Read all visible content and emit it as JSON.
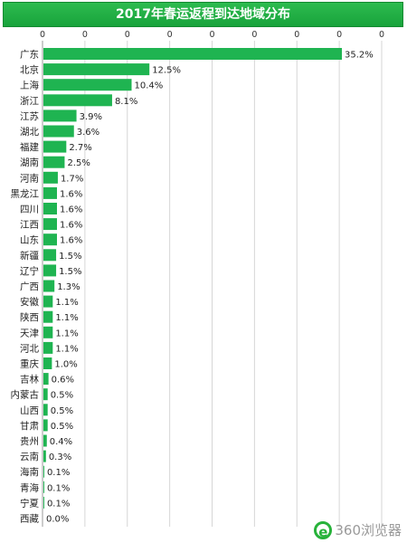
{
  "chart_data": {
    "type": "bar",
    "orientation": "horizontal",
    "title": "2017年春运返程到达地域分布",
    "x_tick_labels": [
      "0",
      "0",
      "0",
      "0",
      "0",
      "0",
      "0",
      "0",
      "0"
    ],
    "xlim": [
      0,
      40
    ],
    "grid": true,
    "bar_color": "#1fb451",
    "categories": [
      "广东",
      "北京",
      "上海",
      "浙江",
      "江苏",
      "湖北",
      "福建",
      "湖南",
      "河南",
      "黑龙江",
      "四川",
      "江西",
      "山东",
      "新疆",
      "辽宁",
      "广西",
      "安徽",
      "陕西",
      "天津",
      "河北",
      "重庆",
      "吉林",
      "内蒙古",
      "山西",
      "甘肃",
      "贵州",
      "云南",
      "海南",
      "青海",
      "宁夏",
      "西藏"
    ],
    "values": [
      35.2,
      12.5,
      10.4,
      8.1,
      3.9,
      3.6,
      2.7,
      2.5,
      1.7,
      1.6,
      1.6,
      1.6,
      1.6,
      1.5,
      1.5,
      1.3,
      1.1,
      1.1,
      1.1,
      1.1,
      1.0,
      0.6,
      0.5,
      0.5,
      0.5,
      0.4,
      0.3,
      0.1,
      0.1,
      0.1,
      0.0
    ],
    "data_labels": [
      "35.2%",
      "12.5%",
      "10.4%",
      "8.1%",
      "3.9%",
      "3.6%",
      "2.7%",
      "2.5%",
      "1.7%",
      "1.6%",
      "1.6%",
      "1.6%",
      "1.6%",
      "1.5%",
      "1.5%",
      "1.3%",
      "1.1%",
      "1.1%",
      "1.1%",
      "1.1%",
      "1.0%",
      "0.6%",
      "0.5%",
      "0.5%",
      "0.5%",
      "0.4%",
      "0.3%",
      "0.1%",
      "0.1%",
      "0.1%",
      "0.0%"
    ]
  },
  "watermark": {
    "logo_glyph": "e",
    "text": "360浏览器"
  }
}
